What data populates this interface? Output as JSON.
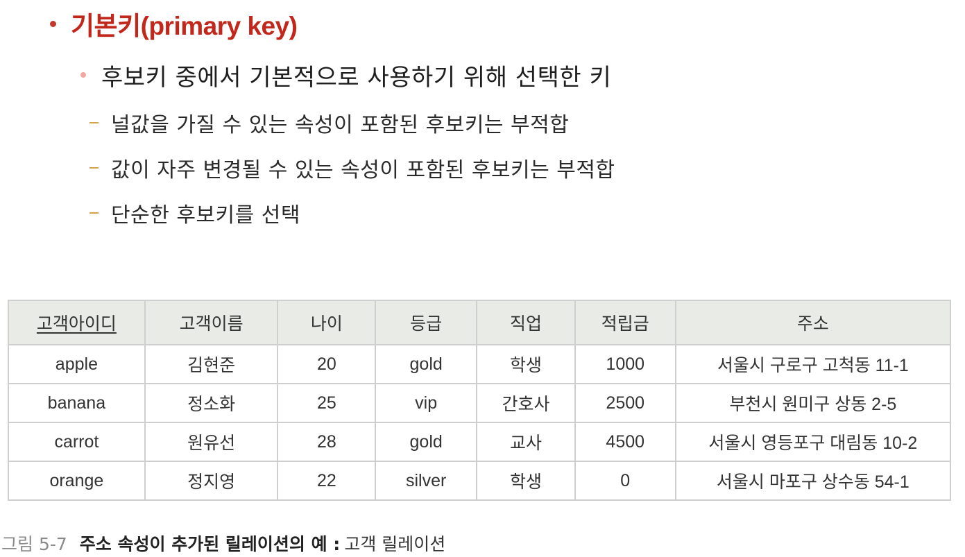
{
  "bullets": {
    "level1": "기본키(primary key)",
    "level2": "후보키 중에서 기본적으로 사용하기 위해 선택한 키",
    "level3": [
      "널값을 가질 수 있는 속성이 포함된 후보키는 부적합",
      "값이 자주 변경될 수 있는 속성이 포함된 후보키는 부적합",
      "단순한 후보키를 선택"
    ]
  },
  "table": {
    "headers": [
      "고객아이디",
      "고객이름",
      "나이",
      "등급",
      "직업",
      "적립금",
      "주소"
    ],
    "primary_key_header": "고객아이디",
    "rows": [
      [
        "apple",
        "김현준",
        "20",
        "gold",
        "학생",
        "1000",
        "서울시 구로구 고척동 11-1"
      ],
      [
        "banana",
        "정소화",
        "25",
        "vip",
        "간호사",
        "2500",
        "부천시 원미구 상동 2-5"
      ],
      [
        "carrot",
        "원유선",
        "28",
        "gold",
        "교사",
        "4500",
        "서울시 영등포구 대림동 10-2"
      ],
      [
        "orange",
        "정지영",
        "22",
        "silver",
        "학생",
        "0",
        "서울시 마포구 상수동 54-1"
      ]
    ]
  },
  "caption": {
    "number": "그림 5-7",
    "title": "주소 속성이 추가된 릴레이션의 예 :",
    "subtitle": "고객 릴레이션"
  },
  "colors": {
    "heading": "#c1271b",
    "bullet_dot_l1": "#c0392b",
    "bullet_dot_l2": "#f2a7a0",
    "dash": "#d4a24c",
    "table_header_bg": "#e9ebe6",
    "table_border": "#cfcfcf"
  }
}
